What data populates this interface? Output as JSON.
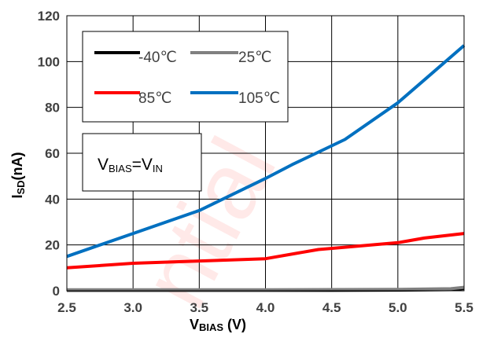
{
  "chart_data": {
    "type": "line",
    "title": "",
    "xlabel": {
      "main": "V",
      "sub": "BIAS",
      "unit": " (V)"
    },
    "ylabel": {
      "main": "I",
      "sub": "SD",
      "unit": "(nA)"
    },
    "xlim": [
      2.5,
      5.5
    ],
    "ylim": [
      0,
      120
    ],
    "xticks": [
      "2.5",
      "3.0",
      "3.5",
      "4.0",
      "4.5",
      "5.0",
      "5.5"
    ],
    "yticks": [
      "0",
      "20",
      "40",
      "60",
      "80",
      "100",
      "120"
    ],
    "grid": true,
    "legend_position": "top-left",
    "series": [
      {
        "name": "-40℃",
        "color": "#000000",
        "x": [
          2.5,
          3.0,
          3.5,
          4.0,
          4.5,
          5.0,
          5.4,
          5.5
        ],
        "y": [
          0.2,
          0.2,
          0.2,
          0.2,
          0.2,
          0.3,
          0.5,
          1.0
        ]
      },
      {
        "name": "25℃",
        "color": "#808080",
        "x": [
          2.5,
          3.0,
          3.5,
          4.0,
          4.5,
          5.0,
          5.4,
          5.5
        ],
        "y": [
          0.4,
          0.4,
          0.4,
          0.4,
          0.5,
          0.6,
          0.9,
          1.5
        ]
      },
      {
        "name": "85℃",
        "color": "#ff0000",
        "x": [
          2.5,
          3.0,
          3.5,
          4.0,
          4.4,
          4.6,
          5.0,
          5.2,
          5.5
        ],
        "y": [
          10,
          12,
          13,
          14,
          18,
          19,
          21,
          23,
          25
        ]
      },
      {
        "name": "105℃",
        "color": "#0070c0",
        "x": [
          2.5,
          3.0,
          3.5,
          4.0,
          4.2,
          4.6,
          5.0,
          5.2,
          5.5
        ],
        "y": [
          15,
          25,
          35,
          49,
          55,
          66,
          82,
          92,
          107
        ]
      }
    ],
    "annotation": {
      "lhs": "V",
      "lhs_sub": "BIAS",
      "eq": "=",
      "rhs": "V",
      "rhs_sub": "IN"
    },
    "watermark": "ntial"
  }
}
